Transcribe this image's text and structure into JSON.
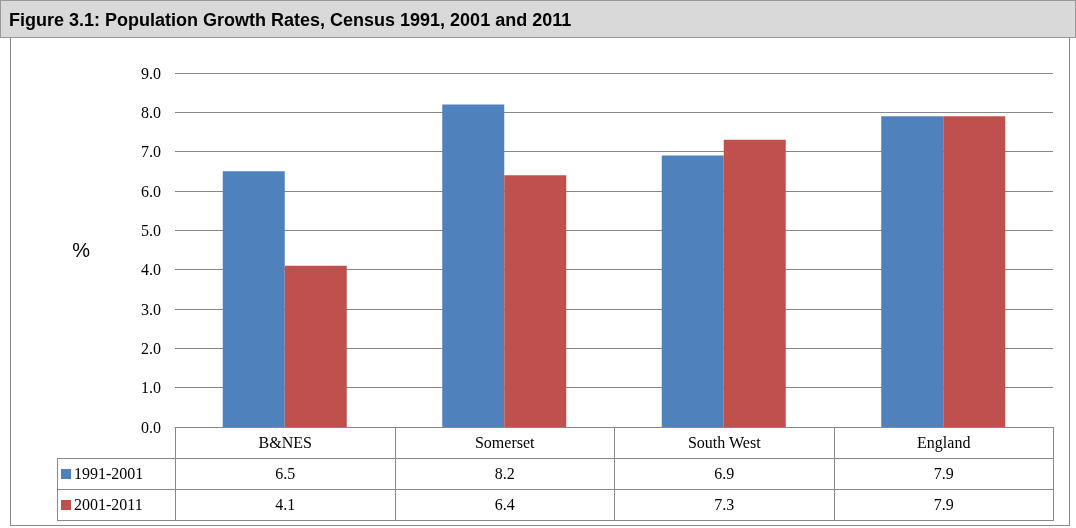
{
  "chart_data": {
    "type": "bar",
    "title": "Figure 3.1: Population Growth Rates, Census 1991, 2001 and 2011",
    "ylabel": "%",
    "categories": [
      "B&NES",
      "Somerset",
      "South West",
      "England"
    ],
    "series": [
      {
        "name": "1991-2001",
        "color": "#4f81bd",
        "values": [
          6.5,
          8.2,
          6.9,
          7.9
        ]
      },
      {
        "name": "2001-2011",
        "color": "#c0504d",
        "values": [
          4.1,
          6.4,
          7.3,
          7.9
        ]
      }
    ],
    "ylim": [
      0,
      9
    ],
    "yticks": [
      {
        "value": 0,
        "label": "0.0"
      },
      {
        "value": 1,
        "label": "1.0"
      },
      {
        "value": 2,
        "label": "2.0"
      },
      {
        "value": 3,
        "label": "3.0"
      },
      {
        "value": 4,
        "label": "4.0"
      },
      {
        "value": 5,
        "label": "5.0"
      },
      {
        "value": 6,
        "label": "6.0"
      },
      {
        "value": 7,
        "label": "7.0"
      },
      {
        "value": 8,
        "label": "8.0"
      },
      {
        "value": 9,
        "label": "9.0"
      }
    ],
    "grid": "y",
    "legend": "bottom left",
    "data_labels": true
  }
}
